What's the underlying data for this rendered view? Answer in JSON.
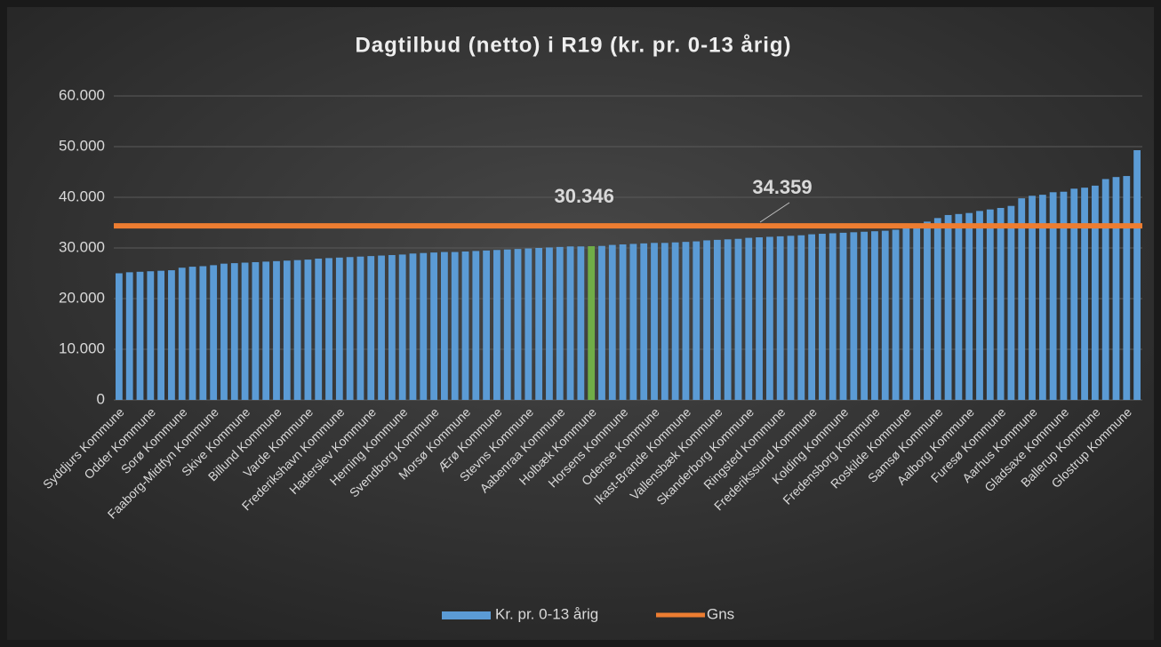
{
  "chart_data": {
    "type": "bar",
    "title": "Dagtilbud (netto) i R19 (kr. pr. 0-13 årig)",
    "categories": [
      "Syddjurs Kommune",
      null,
      null,
      "Odder Kommune",
      null,
      null,
      "Sorø Kommune",
      null,
      null,
      "Faaborg-Midtfyn Kommune",
      null,
      null,
      "Skive Kommune",
      null,
      null,
      "Billund Kommune",
      null,
      null,
      "Varde Kommune",
      null,
      null,
      "Frederikshavn Kommune",
      null,
      null,
      "Haderslev Kommune",
      null,
      null,
      "Herning Kommune",
      null,
      null,
      "Svendborg Kommune",
      null,
      null,
      "Morsø Kommune",
      null,
      null,
      "Ærø Kommune",
      null,
      null,
      "Stevns Kommune",
      null,
      null,
      "Aabenraa Kommune",
      null,
      null,
      "Holbæk Kommune",
      null,
      null,
      "Horsens Kommune",
      null,
      null,
      "Odense Kommune",
      null,
      null,
      "Ikast-Brande Kommune",
      null,
      null,
      "Vallensbæk Kommune",
      null,
      null,
      "Skanderborg Kommune",
      null,
      null,
      "Ringsted Kommune",
      null,
      null,
      "Frederikssund Kommune",
      null,
      null,
      "Kolding Kommune",
      null,
      null,
      "Fredensborg Kommune",
      null,
      null,
      "Roskilde Kommune",
      null,
      null,
      "Samsø Kommune",
      null,
      null,
      "Aalborg Kommune",
      null,
      null,
      "Furesø Kommune",
      null,
      null,
      "Aarhus Kommune",
      null,
      null,
      "Gladsaxe Kommune",
      null,
      null,
      "Ballerup Kommune",
      null,
      null,
      "Glostrup Kommune",
      null
    ],
    "series": [
      {
        "name": "Kr. pr. 0-13 årig",
        "color": "#5b9bd5",
        "values": [
          25000,
          25200,
          25300,
          25400,
          25500,
          25600,
          26100,
          26300,
          26400,
          26600,
          26900,
          27000,
          27100,
          27200,
          27300,
          27400,
          27500,
          27600,
          27700,
          27900,
          28000,
          28100,
          28200,
          28300,
          28400,
          28500,
          28600,
          28700,
          28900,
          29000,
          29100,
          29200,
          29200,
          29300,
          29400,
          29500,
          29600,
          29700,
          29800,
          29900,
          30000,
          30100,
          30200,
          30300,
          30300,
          30346,
          30400,
          30600,
          30700,
          30800,
          30900,
          31000,
          31000,
          31100,
          31200,
          31300,
          31500,
          31600,
          31700,
          31800,
          32000,
          32100,
          32200,
          32300,
          32400,
          32500,
          32700,
          32800,
          32900,
          33000,
          33100,
          33200,
          33300,
          33400,
          33600,
          34000,
          34800,
          35200,
          35900,
          36500,
          36700,
          36900,
          37300,
          37600,
          37900,
          38300,
          39800,
          40300,
          40500,
          41000,
          41100,
          41700,
          41900,
          42300,
          43600,
          44000,
          44200,
          49300
        ]
      }
    ],
    "highlight": {
      "index": 45,
      "color": "#70ad47",
      "value_label": "30.346"
    },
    "average": {
      "name": "Gns",
      "value": 34359,
      "value_label": "34.359",
      "color": "#ed7d31"
    },
    "ylim": [
      0,
      60000
    ],
    "yticks": [
      0,
      {
        "value": 10000,
        "label": "10.000"
      },
      {
        "value": 20000,
        "label": "20.000"
      },
      {
        "value": 30000,
        "label": "30.000"
      },
      {
        "value": 40000,
        "label": "40.000"
      },
      {
        "value": 50000,
        "label": "50.000"
      },
      {
        "value": 60000,
        "label": "60.000"
      }
    ],
    "grid": true,
    "legend": "bottom"
  }
}
